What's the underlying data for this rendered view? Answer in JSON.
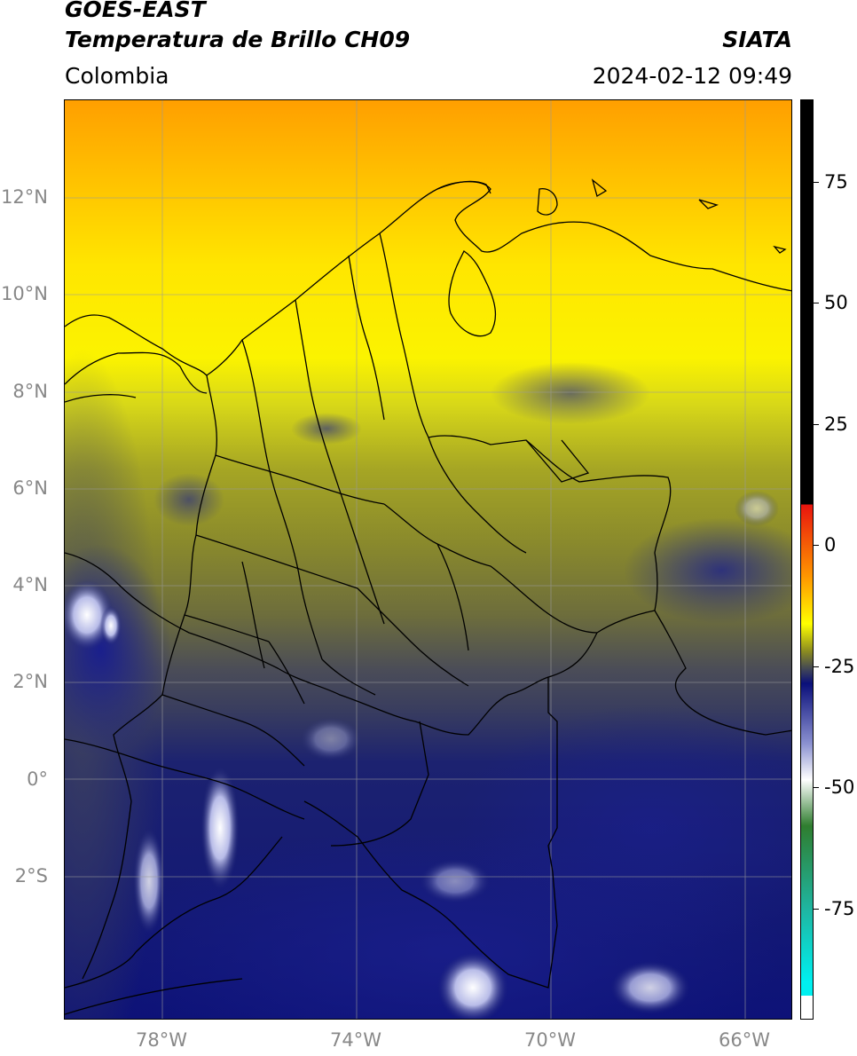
{
  "header": {
    "title_line1": "GOES-EAST",
    "title_line2": "Temperatura de Brillo CH09",
    "brand": "SIATA",
    "region": "Colombia",
    "datetime": "2024-02-12 09:49"
  },
  "map": {
    "lat_labels": [
      "12°N",
      "10°N",
      "8°N",
      "6°N",
      "4°N",
      "2°N",
      "0°",
      "2°S"
    ],
    "lon_labels": [
      "78°W",
      "74°W",
      "70°W",
      "66°W"
    ]
  },
  "colorbar": {
    "labels": [
      "75",
      "50",
      "25",
      "0",
      "-25",
      "-50",
      "-75"
    ],
    "colors": {
      "black": "#000000",
      "red": "#e8140e",
      "orange": "#ff9900",
      "yellow": "#ffff00",
      "olive": "#8b8b20",
      "slate": "#3f4458",
      "navy": "#0a0f7a",
      "white": "#ffffff",
      "green": "#2f7d2f",
      "teal": "#1fb5a0",
      "cyan": "#00f0f0"
    }
  }
}
